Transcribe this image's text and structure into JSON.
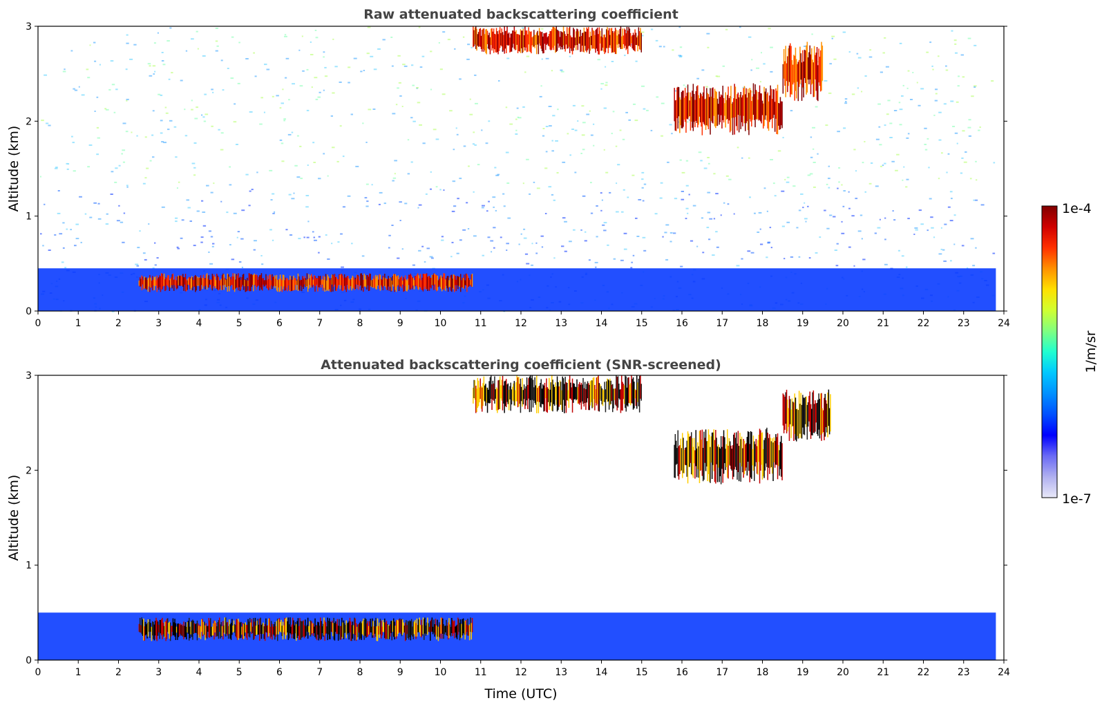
{
  "chart_data": [
    {
      "type": "heatmap",
      "title": "Raw attenuated backscattering coefficient",
      "xlabel": "",
      "ylabel": "Altitude (km)",
      "xlim": [
        0,
        24
      ],
      "ylim": [
        0,
        3
      ],
      "x_ticks": [
        "0",
        "1",
        "2",
        "3",
        "4",
        "5",
        "6",
        "7",
        "8",
        "9",
        "10",
        "11",
        "12",
        "13",
        "14",
        "15",
        "16",
        "17",
        "18",
        "19",
        "20",
        "21",
        "22",
        "23",
        "24"
      ],
      "y_ticks": [
        "0",
        "1",
        "2",
        "3"
      ],
      "colorscale": "log",
      "features": [
        {
          "description": "boundary layer aerosol",
          "t_start": 0,
          "t_end": 23.8,
          "alt_bottom": 0,
          "alt_top": 0.45,
          "level": "low (blue)"
        },
        {
          "description": "low cloud layer",
          "t_start": 2.5,
          "t_end": 10.8,
          "alt_bottom": 0.2,
          "alt_top": 0.4,
          "level": "high (red)"
        },
        {
          "description": "cloud top",
          "t_start": 10.8,
          "t_end": 15.0,
          "alt_bottom": 2.7,
          "alt_top": 3.0,
          "level": "high (red)"
        },
        {
          "description": "mid cloud",
          "t_start": 15.8,
          "t_end": 18.5,
          "alt_bottom": 1.85,
          "alt_top": 2.4,
          "level": "high (red)"
        },
        {
          "description": "mid cloud",
          "t_start": 18.5,
          "t_end": 19.5,
          "alt_bottom": 2.2,
          "alt_top": 2.85,
          "level": "high (red)"
        }
      ]
    },
    {
      "type": "heatmap",
      "title": "Attenuated backscattering coefficient (SNR-screened)",
      "xlabel": "Time (UTC)",
      "ylabel": "Altitude (km)",
      "xlim": [
        0,
        24
      ],
      "ylim": [
        0,
        3
      ],
      "x_ticks": [
        "0",
        "1",
        "2",
        "3",
        "4",
        "5",
        "6",
        "7",
        "8",
        "9",
        "10",
        "11",
        "12",
        "13",
        "14",
        "15",
        "16",
        "17",
        "18",
        "19",
        "20",
        "21",
        "22",
        "23",
        "24"
      ],
      "y_ticks": [
        "0",
        "1",
        "2",
        "3"
      ],
      "colorscale": "log",
      "features": [
        {
          "description": "boundary layer aerosol",
          "t_start": 0,
          "t_end": 23.8,
          "alt_bottom": 0,
          "alt_top": 0.5,
          "level": "low (blue)"
        },
        {
          "description": "low cloud layer",
          "t_start": 2.5,
          "t_end": 10.8,
          "alt_bottom": 0.2,
          "alt_top": 0.45,
          "level": "saturated (black)"
        },
        {
          "description": "cloud top",
          "t_start": 10.8,
          "t_end": 15.0,
          "alt_bottom": 2.6,
          "alt_top": 3.0,
          "level": "saturated (black)"
        },
        {
          "description": "mid cloud",
          "t_start": 15.8,
          "t_end": 18.5,
          "alt_bottom": 1.85,
          "alt_top": 2.45,
          "level": "saturated (black)"
        },
        {
          "description": "mid cloud",
          "t_start": 18.5,
          "t_end": 19.7,
          "alt_bottom": 2.3,
          "alt_top": 2.85,
          "level": "saturated (black)"
        }
      ]
    }
  ],
  "colorbar": {
    "label": "1/m/sr",
    "max_label": "1e-4",
    "min_label": "1e-7",
    "colors": [
      "#e8e8f8",
      "#b0b0f0",
      "#6a6af5",
      "#0000ff",
      "#0050ff",
      "#0090ff",
      "#00c8ff",
      "#20ffd0",
      "#80ff80",
      "#d0ff30",
      "#ffe000",
      "#ff9000",
      "#ff3000",
      "#d00000",
      "#800000"
    ]
  }
}
